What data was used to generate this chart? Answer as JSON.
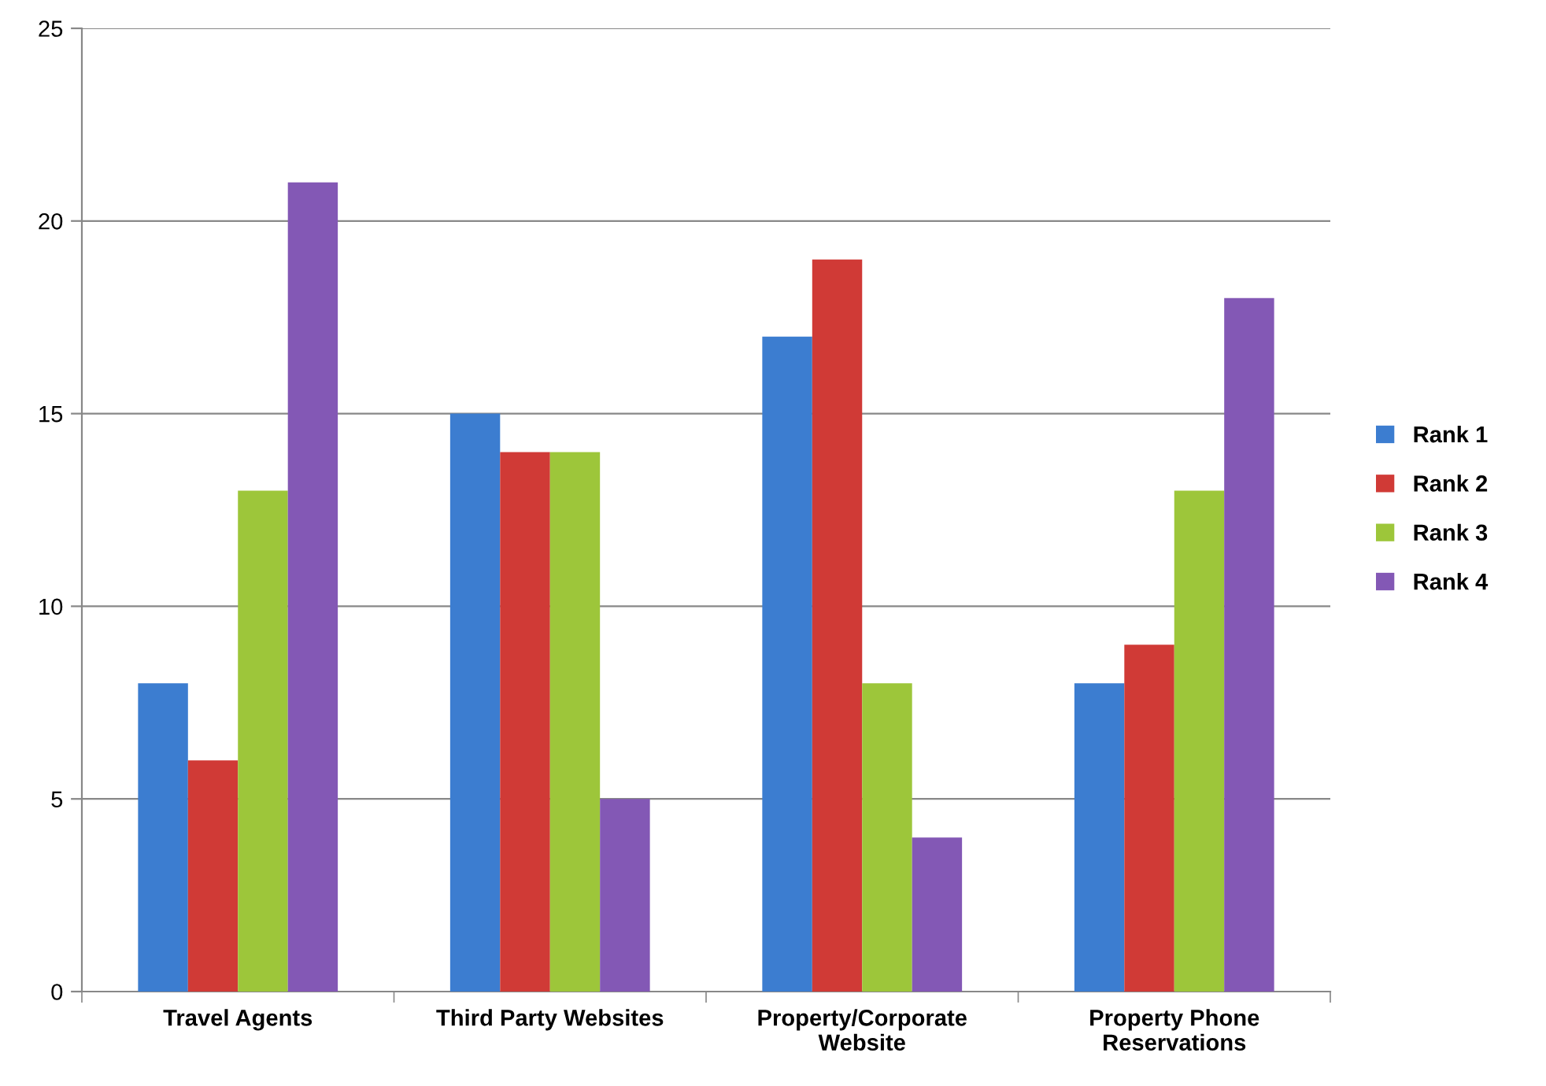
{
  "chart_data": {
    "type": "bar",
    "categories": [
      "Travel Agents",
      "Third Party Websites",
      "Property/Corporate\nWebsite",
      "Property Phone\nReservations"
    ],
    "series": [
      {
        "name": "Rank 1",
        "color": "#3c7dd0",
        "values": [
          8,
          15,
          17,
          8
        ]
      },
      {
        "name": "Rank 2",
        "color": "#d03a36",
        "values": [
          6,
          14,
          19,
          9
        ]
      },
      {
        "name": "Rank 3",
        "color": "#9dc63a",
        "values": [
          13,
          14,
          8,
          13
        ]
      },
      {
        "name": "Rank 4",
        "color": "#8358b5",
        "values": [
          21,
          5,
          4,
          18
        ]
      }
    ],
    "ylim": [
      0,
      25
    ],
    "yticks": [
      0,
      5,
      10,
      15,
      20,
      25
    ],
    "grid": "y",
    "legend": "right"
  }
}
